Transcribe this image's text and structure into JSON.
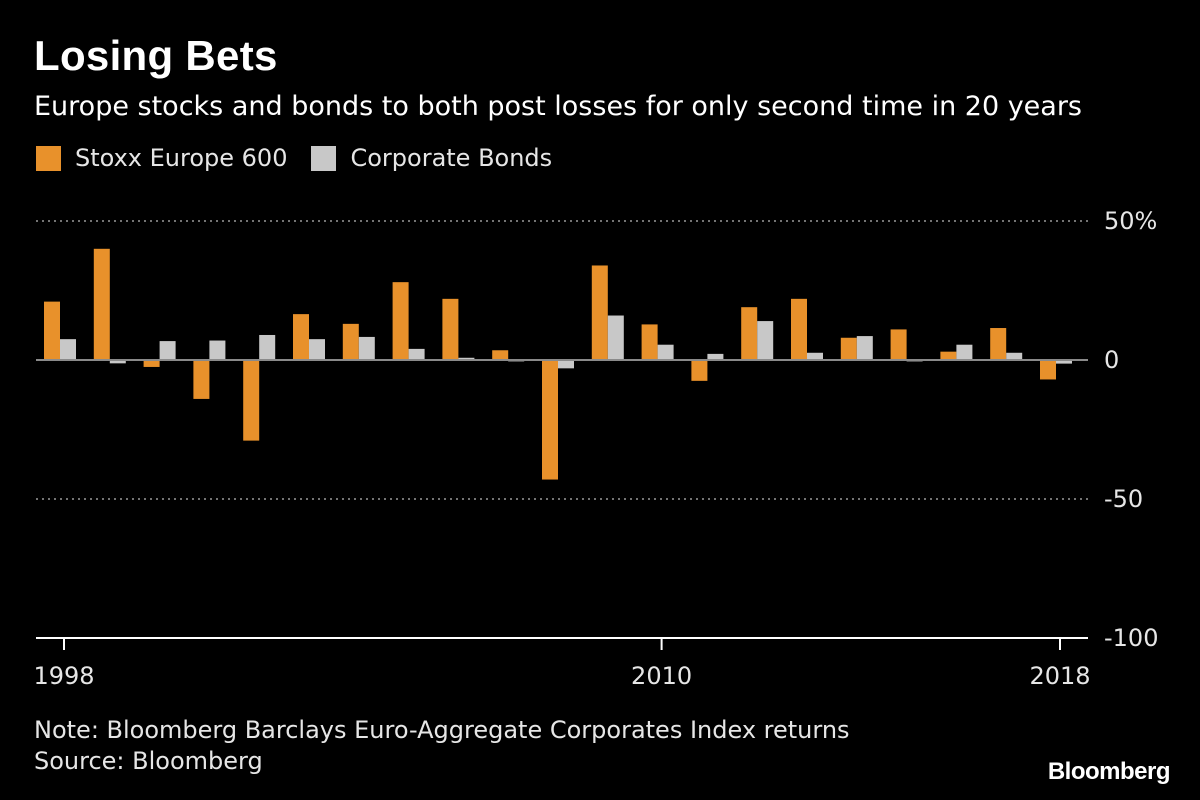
{
  "title": "Losing Bets",
  "subtitle": "Europe stocks and bonds to both post losses for only second time in 20 years",
  "legend": [
    {
      "label": "Stoxx Europe 600",
      "color": "#e8912b"
    },
    {
      "label": "Corporate Bonds",
      "color": "#c8c8c8"
    }
  ],
  "note": "Note: Bloomberg Barclays Euro-Aggregate Corporates Index returns",
  "source": "Source: Bloomberg",
  "logo": "Bloomberg",
  "colors": {
    "background": "#000000",
    "stoxx": "#e8912b",
    "bonds": "#c8c8c8",
    "axis": "#ffffff",
    "grid": "#9a9a9a"
  },
  "chart_data": {
    "type": "bar",
    "x": [
      1998,
      1999,
      2000,
      2001,
      2002,
      2003,
      2004,
      2005,
      2006,
      2007,
      2008,
      2009,
      2010,
      2011,
      2012,
      2013,
      2014,
      2015,
      2016,
      2017,
      2018
    ],
    "series": [
      {
        "name": "Stoxx Europe 600",
        "color": "#e8912b",
        "values": [
          21,
          40,
          -2.5,
          -14,
          -29,
          16.5,
          13,
          28,
          22,
          3.5,
          -43,
          34,
          12.8,
          -7.5,
          19,
          22,
          8,
          11,
          3,
          11.5,
          -7
        ]
      },
      {
        "name": "Corporate Bonds",
        "color": "#c8c8c8",
        "values": [
          7.5,
          -1.2,
          6.8,
          7,
          9,
          7.5,
          8.3,
          4,
          0.8,
          -0.5,
          -3,
          16,
          5.5,
          2.2,
          14,
          2.6,
          8.6,
          -0.5,
          5.5,
          2.6,
          -1.3
        ]
      }
    ],
    "xticks": [
      1998,
      2010,
      2018
    ],
    "xtick_labels": [
      "1998",
      "2010",
      "2018"
    ],
    "yticks": [
      50,
      0,
      -50,
      -100
    ],
    "ytick_labels": [
      "50%",
      "0",
      "-50",
      "-100"
    ],
    "ylim": [
      -100,
      50
    ],
    "grid": "dotted horizontal at 50 and -50",
    "legend_position": "top-left"
  }
}
